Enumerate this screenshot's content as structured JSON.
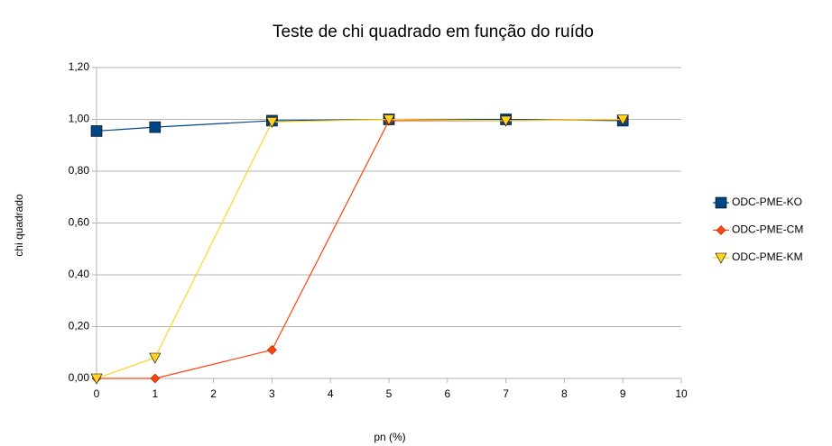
{
  "chart_data": {
    "type": "line",
    "title": "Teste de chi quadrado em função do ruído",
    "x_label": "pn (%)",
    "y_label": "chi quadrado",
    "x": [
      0,
      1,
      3,
      5,
      7,
      9
    ],
    "series": [
      {
        "name": "ODC-PME-KO",
        "color": "#004586",
        "marker": "square",
        "values": [
          0.955,
          0.97,
          0.995,
          1.0,
          1.0,
          0.995
        ]
      },
      {
        "name": "ODC-PME-CM",
        "color": "#ff420e",
        "marker": "diamond",
        "values": [
          0,
          0,
          0.11,
          0.995,
          0.995,
          1.0
        ]
      },
      {
        "name": "ODC-PME-KM",
        "color": "#ffd320",
        "marker": "triangle-down",
        "values": [
          0,
          0.08,
          0.99,
          1.0,
          0.995,
          1.0
        ]
      }
    ],
    "xlim": [
      0,
      10
    ],
    "xticks": [
      0,
      1,
      2,
      3,
      4,
      5,
      6,
      7,
      8,
      9,
      10
    ],
    "ylim": [
      0,
      1.2
    ],
    "yticks": [
      {
        "value": 0,
        "label": "0,00"
      },
      {
        "value": 0.2,
        "label": "0,20"
      },
      {
        "value": 0.4,
        "label": "0,40"
      },
      {
        "value": 0.6,
        "label": "0,60"
      },
      {
        "value": 0.8,
        "label": "0,80"
      },
      {
        "value": 1.0,
        "label": "1,00"
      },
      {
        "value": 1.2,
        "label": "1,20"
      }
    ],
    "grid": true,
    "legend": "right"
  }
}
